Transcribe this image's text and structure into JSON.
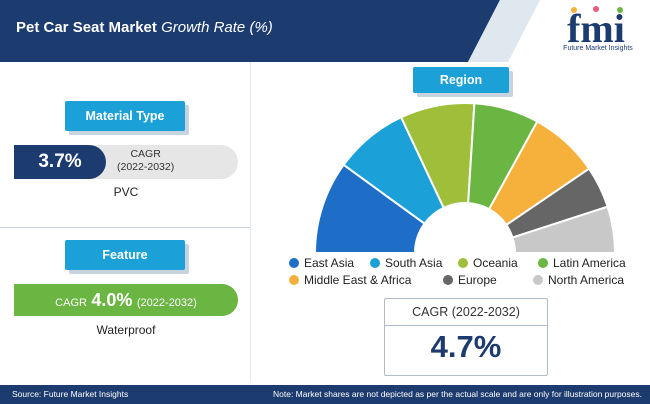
{
  "header": {
    "title_bold": "Pet Car Seat Market",
    "title_italic": "Growth Rate (%)",
    "logo_text": "Future Market Insights",
    "logo_mark": "fmi"
  },
  "material": {
    "tab": "Material Type",
    "value": "3.7%",
    "cagr_label": "CAGR",
    "period": "(2022-2032)",
    "name": "PVC"
  },
  "feature": {
    "tab": "Feature",
    "cagr_label": "CAGR",
    "value": "4.0%",
    "period": "(2022-2032)",
    "name": "Waterproof"
  },
  "region": {
    "tab": "Region",
    "cagr_label": "CAGR",
    "period": "(2022-2032)",
    "value": "4.7%"
  },
  "chart_data": {
    "type": "pie",
    "variant": "half-donut",
    "title": "Region",
    "categories": [
      "East Asia",
      "South Asia",
      "Oceania",
      "Latin America",
      "Middle East & Africa",
      "Europe",
      "North America"
    ],
    "values": [
      20,
      16,
      16,
      14,
      15,
      9,
      10
    ],
    "colors": [
      "#1e6ec8",
      "#1ba0d8",
      "#9fbf3b",
      "#6bb543",
      "#f6b13c",
      "#666666",
      "#c8c8c8"
    ],
    "legend_position": "bottom"
  },
  "footer": {
    "source": "Source: Future Market Insights",
    "note": "Note: Market shares are not depicted as per the actual scale and are only for illustration purposes."
  },
  "colors": {
    "navy": "#1c3b6e",
    "blue": "#1ba0d8",
    "green": "#6bb543"
  }
}
